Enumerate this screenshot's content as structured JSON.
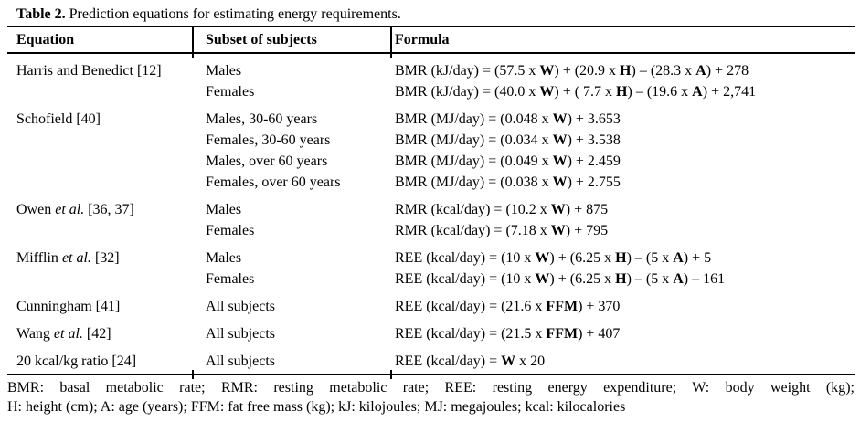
{
  "title": {
    "label": "Table 2.",
    "rest": " Prediction equations for estimating energy requirements."
  },
  "columns": {
    "equation": "Equation",
    "subset": "Subset of subjects",
    "formula": "Formula"
  },
  "rows": [
    {
      "equation": [
        {
          "t": "Harris and Benedict [12]"
        }
      ],
      "entries": [
        {
          "subset": "Males",
          "formula": [
            {
              "t": "BMR (kJ/day) = (57.5 x "
            },
            {
              "t": "W",
              "b": true
            },
            {
              "t": ") + (20.9 x "
            },
            {
              "t": "H",
              "b": true
            },
            {
              "t": ") – (28.3 x "
            },
            {
              "t": "A",
              "b": true
            },
            {
              "t": ") + 278"
            }
          ]
        },
        {
          "subset": "Females",
          "formula": [
            {
              "t": "BMR (kJ/day) = (40.0 x "
            },
            {
              "t": "W",
              "b": true
            },
            {
              "t": ") + ( 7.7 x "
            },
            {
              "t": "H",
              "b": true
            },
            {
              "t": ") – (19.6 x "
            },
            {
              "t": "A",
              "b": true
            },
            {
              "t": ") + 2,741"
            }
          ]
        }
      ]
    },
    {
      "equation": [
        {
          "t": "Schofield [40]"
        }
      ],
      "entries": [
        {
          "subset": "Males, 30-60 years",
          "formula": [
            {
              "t": "BMR (MJ/day) = (0.048 x "
            },
            {
              "t": "W",
              "b": true
            },
            {
              "t": ") + 3.653"
            }
          ]
        },
        {
          "subset": "Females, 30-60 years",
          "formula": [
            {
              "t": "BMR (MJ/day) = (0.034 x "
            },
            {
              "t": "W",
              "b": true
            },
            {
              "t": ") + 3.538"
            }
          ]
        },
        {
          "subset": "Males, over 60 years",
          "formula": [
            {
              "t": "BMR (MJ/day) = (0.049 x "
            },
            {
              "t": "W",
              "b": true
            },
            {
              "t": ") + 2.459"
            }
          ]
        },
        {
          "subset": "Females, over 60 years",
          "formula": [
            {
              "t": "BMR (MJ/day) = (0.038 x "
            },
            {
              "t": "W",
              "b": true
            },
            {
              "t": ") + 2.755"
            }
          ]
        }
      ]
    },
    {
      "equation": [
        {
          "t": "Owen "
        },
        {
          "t": "et al.",
          "i": true
        },
        {
          "t": " [36, 37]"
        }
      ],
      "entries": [
        {
          "subset": "Males",
          "formula": [
            {
              "t": "RMR (kcal/day) = (10.2 x "
            },
            {
              "t": "W",
              "b": true
            },
            {
              "t": ") + 875"
            }
          ]
        },
        {
          "subset": "Females",
          "formula": [
            {
              "t": "RMR (kcal/day) = (7.18 x "
            },
            {
              "t": "W",
              "b": true
            },
            {
              "t": ") + 795"
            }
          ]
        }
      ]
    },
    {
      "equation": [
        {
          "t": "Mifflin "
        },
        {
          "t": "et al.",
          "i": true
        },
        {
          "t": " [32]"
        }
      ],
      "entries": [
        {
          "subset": "Males",
          "formula": [
            {
              "t": "REE (kcal/day) = (10 x "
            },
            {
              "t": "W",
              "b": true
            },
            {
              "t": ") + (6.25 x "
            },
            {
              "t": "H",
              "b": true
            },
            {
              "t": ") – (5 x "
            },
            {
              "t": "A",
              "b": true
            },
            {
              "t": ") + 5"
            }
          ]
        },
        {
          "subset": "Females",
          "formula": [
            {
              "t": "REE (kcal/day) = (10 x "
            },
            {
              "t": "W",
              "b": true
            },
            {
              "t": ") + (6.25 x "
            },
            {
              "t": "H",
              "b": true
            },
            {
              "t": ") – (5 x "
            },
            {
              "t": "A",
              "b": true
            },
            {
              "t": ") – 161"
            }
          ]
        }
      ]
    },
    {
      "equation": [
        {
          "t": "Cunningham [41]"
        }
      ],
      "entries": [
        {
          "subset": "All subjects",
          "formula": [
            {
              "t": "REE (kcal/day) = (21.6 x "
            },
            {
              "t": "FFM",
              "b": true
            },
            {
              "t": ") + 370"
            }
          ]
        }
      ]
    },
    {
      "equation": [
        {
          "t": "Wang "
        },
        {
          "t": "et al.",
          "i": true
        },
        {
          "t": " [42]"
        }
      ],
      "entries": [
        {
          "subset": "All subjects",
          "formula": [
            {
              "t": "REE (kcal/day) = (21.5 x "
            },
            {
              "t": "FFM",
              "b": true
            },
            {
              "t": ") + 407"
            }
          ]
        }
      ]
    },
    {
      "equation": [
        {
          "t": "20 kcal/kg ratio [24]"
        }
      ],
      "entries": [
        {
          "subset": "All subjects",
          "formula": [
            {
              "t": "REE (kcal/day) = "
            },
            {
              "t": "W",
              "b": true
            },
            {
              "t": " x 20"
            }
          ]
        }
      ]
    }
  ],
  "footnote": {
    "line1": "BMR: basal metabolic rate; RMR: resting metabolic rate; REE: resting energy expenditure; W: body weight (kg);",
    "line2": "H: height (cm); A: age (years); FFM: fat free mass (kg); kJ: kilojoules; MJ: megajoules; kcal: kilocalories"
  },
  "colors": {
    "background": "#ffffff",
    "text": "#000000",
    "rule": "#000000"
  }
}
